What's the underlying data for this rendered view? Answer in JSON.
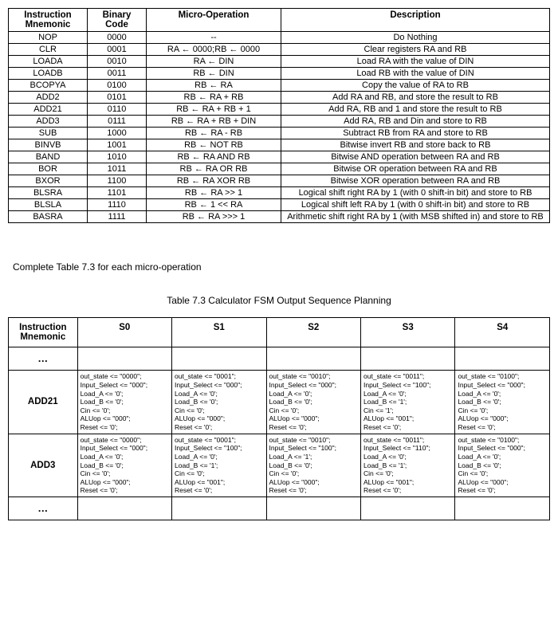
{
  "arrow": "←",
  "table1": {
    "headers": [
      "Instruction Mnemonic",
      "Binary Code",
      "Micro-Operation",
      "Description"
    ],
    "rows": [
      {
        "m": "NOP",
        "b": "0000",
        "op": "--",
        "d": "Do Nothing"
      },
      {
        "m": "CLR",
        "b": "0001",
        "op": "RA {A} 0000;RB {A} 0000",
        "d": "Clear registers RA and RB"
      },
      {
        "m": "LOADA",
        "b": "0010",
        "op": "RA {A} DIN",
        "d": "Load RA with the value of DIN"
      },
      {
        "m": "LOADB",
        "b": "0011",
        "op": "RB {A} DIN",
        "d": "Load RB with the value of DIN"
      },
      {
        "m": "BCOPYA",
        "b": "0100",
        "op": "RB {A} RA",
        "d": "Copy the value of RA to RB"
      },
      {
        "m": "ADD2",
        "b": "0101",
        "op": "RB {A} RA + RB",
        "d": "Add RA and RB, and store the result to RB"
      },
      {
        "m": "ADD21",
        "b": "0110",
        "op": "RB {A} RA + RB + 1",
        "d": "Add RA, RB and 1 and store the result to RB"
      },
      {
        "m": "ADD3",
        "b": "0111",
        "op": "RB {A} RA + RB + DIN",
        "d": "Add RA, RB and Din and store to RB"
      },
      {
        "m": "SUB",
        "b": "1000",
        "op": "RB {A} RA - RB",
        "d": "Subtract RB from RA and store to RB"
      },
      {
        "m": "BINVB",
        "b": "1001",
        "op": "RB {A} NOT RB",
        "d": "Bitwise invert RB and store back to RB"
      },
      {
        "m": "BAND",
        "b": "1010",
        "op": "RB {A} RA AND RB",
        "d": "Bitwise AND operation between RA and RB"
      },
      {
        "m": "BOR",
        "b": "1011",
        "op": "RB {A} RA OR RB",
        "d": "Bitwise OR operation between RA and RB"
      },
      {
        "m": "BXOR",
        "b": "1100",
        "op": "RB {A} RA XOR RB",
        "d": "Bitwise XOR operation between RA and RB"
      },
      {
        "m": "BLSRA",
        "b": "1101",
        "op": "RB {A} RA >> 1",
        "d": "Logical shift right RA by 1 (with 0 shift-in bit) and store to RB"
      },
      {
        "m": "BLSLA",
        "b": "1110",
        "op": "RB {A} 1 << RA",
        "d": "Logical shift left RA by 1 (with 0 shift-in bit) and store to RB"
      },
      {
        "m": "BASRA",
        "b": "1111",
        "op": "RB {A} RA >>> 1",
        "d": "Arithmetic shift right  RA by 1 (with MSB shifted in) and store to RB"
      }
    ]
  },
  "instruction_text": "Complete Table 7.3 for each micro-operation",
  "caption": "Table 7.3 Calculator FSM Output Sequence Planning",
  "table2": {
    "headers": [
      "Instruction Mnemonic",
      "S0",
      "S1",
      "S2",
      "S3",
      "S4"
    ],
    "rows": [
      {
        "m": "ADD21",
        "cells": [
          [
            "out_state <= \"0000\";",
            "Input_Select <= \"000\";",
            "Load_A <= '0';",
            "Load_B <= '0';",
            "Cin <= '0';",
            "ALUop <= \"000\";",
            "Reset <= '0';"
          ],
          [
            "out_state <= \"0001\";",
            "Input_Select <= \"000\";",
            "Load_A <= '0';",
            "Load_B <= '0';",
            "Cin <= '0';",
            "ALUop <= \"000\";",
            "Reset <= '0';"
          ],
          [
            "out_state <= \"0010\";",
            "Input_Select <= \"000\";",
            "Load_A <= '0';",
            "Load_B <= '0';",
            "Cin <= '0';",
            "ALUop <= \"000\";",
            "Reset <= '0';"
          ],
          [
            "out_state <= \"0011\";",
            "Input_Select <= \"100\";",
            "Load_A <= '0';",
            "Load_B <= '1';",
            "Cin <= '1';",
            "ALUop <= \"001\";",
            "Reset <= '0';"
          ],
          [
            "out_state <= \"0100\";",
            "Input_Select <= \"000\";",
            "Load_A <= '0';",
            "Load_B <= '0';",
            "Cin <= '0';",
            "ALUop <= \"000\";",
            "Reset <= '0';"
          ]
        ]
      },
      {
        "m": "ADD3",
        "cells": [
          [
            "out_state <= \"0000\";",
            "Input_Select <= \"000\";",
            "Load_A <= '0';",
            "Load_B <= '0';",
            "Cin <= '0';",
            "ALUop <= \"000\";",
            "Reset <= '0';"
          ],
          [
            "out_state <= \"0001\";",
            "Input_Select <= \"100\";",
            "Load_A <= '0';",
            "Load_B <= '1';",
            "Cin <= '0';",
            "ALUop <= \"001\";",
            "Reset <= '0';"
          ],
          [
            "out_state <= \"0010\";",
            "Input_Select <= \"100\";",
            "Load_A <= '1';",
            "Load_B <= '0';",
            "Cin <= '0';",
            "ALUop <= \"000\";",
            "Reset <= '0';"
          ],
          [
            "out_state <= \"0011\";",
            "Input_Select <= \"110\";",
            "Load_A <= '0';",
            "Load_B <= '1';",
            "Cin <= '0';",
            "ALUop <= \"001\";",
            "Reset <= '0';"
          ],
          [
            "out_state <= \"0100\";",
            "Input_Select <= \"000\";",
            "Load_A <= '0';",
            "Load_B <= '0';",
            "Cin <= '0';",
            "ALUop <= \"000\";",
            "Reset <= '0';"
          ]
        ]
      }
    ]
  }
}
